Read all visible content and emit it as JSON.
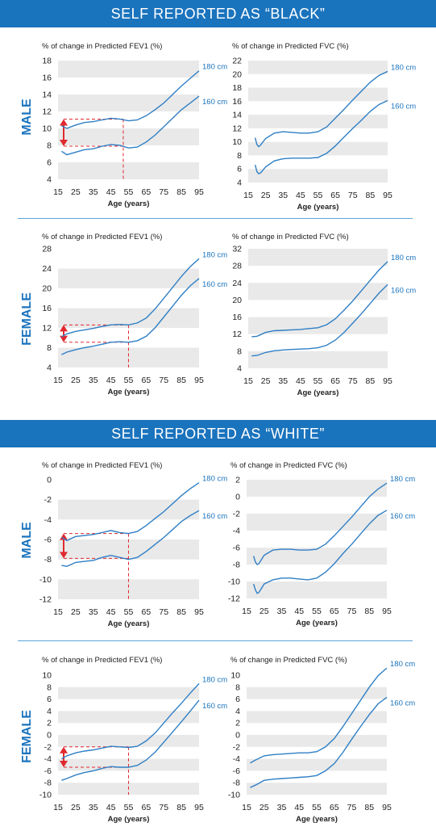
{
  "banners": [
    "SELF REPORTED AS “BLACK”",
    "SELF REPORTED AS “WHITE”"
  ],
  "sex_labels": [
    "MALE",
    "FEMALE",
    "MALE",
    "FEMALE"
  ],
  "colors": {
    "accent": "#1a73bd",
    "line": "#2f7fc5",
    "band": "#e9e9e9",
    "marker": "#e0292f"
  },
  "chart_data": [
    {
      "type": "line",
      "title": "% of change in Predicted FEV1 (%)",
      "xlabel": "Age (years)",
      "ylabel": "",
      "xlim": [
        15,
        95
      ],
      "ylim": [
        4,
        18
      ],
      "xticks": [
        15,
        25,
        35,
        45,
        55,
        65,
        75,
        85,
        95
      ],
      "yticks": [
        4,
        6,
        8,
        10,
        12,
        14,
        16,
        18
      ],
      "series": [
        {
          "name": "180 cm",
          "x": [
            17,
            20,
            25,
            30,
            35,
            40,
            45,
            50,
            55,
            60,
            65,
            70,
            75,
            80,
            85,
            90,
            95
          ],
          "y": [
            10.3,
            10.0,
            10.4,
            10.7,
            10.8,
            11.0,
            11.2,
            11.1,
            10.9,
            11.0,
            11.5,
            12.2,
            13.0,
            14.0,
            15.0,
            15.9,
            16.8
          ]
        },
        {
          "name": "160 cm",
          "x": [
            17,
            20,
            25,
            30,
            35,
            40,
            45,
            50,
            55,
            60,
            65,
            70,
            75,
            80,
            85,
            90,
            95
          ],
          "y": [
            7.3,
            6.9,
            7.2,
            7.5,
            7.6,
            7.9,
            8.1,
            8.0,
            7.7,
            7.8,
            8.4,
            9.2,
            10.2,
            11.2,
            12.2,
            13.0,
            13.8
          ]
        }
      ],
      "marker": {
        "x": 52,
        "y_high": 11.1,
        "y_low": 7.9
      }
    },
    {
      "type": "line",
      "title": "% of change in Predicted FVC (%)",
      "xlabel": "Age (years)",
      "ylabel": "",
      "xlim": [
        15,
        95
      ],
      "ylim": [
        4,
        22
      ],
      "xticks": [
        15,
        25,
        35,
        45,
        55,
        65,
        75,
        85,
        95
      ],
      "yticks": [
        4,
        6,
        8,
        10,
        12,
        14,
        16,
        18,
        20,
        22
      ],
      "series": [
        {
          "name": "180 cm",
          "x": [
            19,
            20,
            21,
            22,
            25,
            30,
            35,
            40,
            45,
            50,
            55,
            60,
            65,
            70,
            75,
            80,
            85,
            90,
            95
          ],
          "y": [
            10.6,
            9.6,
            9.3,
            9.5,
            10.5,
            11.3,
            11.5,
            11.4,
            11.3,
            11.3,
            11.5,
            12.2,
            13.5,
            14.8,
            16.2,
            17.5,
            18.8,
            19.8,
            20.4
          ]
        },
        {
          "name": "160 cm",
          "x": [
            19,
            20,
            21,
            22,
            25,
            30,
            35,
            40,
            45,
            50,
            55,
            60,
            65,
            70,
            75,
            80,
            85,
            90,
            95
          ],
          "y": [
            6.6,
            5.6,
            5.3,
            5.4,
            6.3,
            7.2,
            7.5,
            7.6,
            7.6,
            7.6,
            7.7,
            8.3,
            9.4,
            10.7,
            12.0,
            13.2,
            14.5,
            15.5,
            16.1
          ]
        }
      ]
    },
    {
      "type": "line",
      "title": "% of change in Predicted FEV1 (%)",
      "xlabel": "Age (years)",
      "ylabel": "",
      "xlim": [
        15,
        95
      ],
      "ylim": [
        4,
        28
      ],
      "xticks": [
        15,
        25,
        35,
        45,
        55,
        65,
        75,
        85,
        95
      ],
      "yticks": [
        4,
        8,
        12,
        16,
        20,
        24,
        28
      ],
      "series": [
        {
          "name": "180 cm",
          "x": [
            17,
            20,
            25,
            30,
            35,
            40,
            45,
            50,
            55,
            60,
            65,
            70,
            75,
            80,
            85,
            90,
            95
          ],
          "y": [
            10.2,
            10.8,
            11.3,
            11.6,
            11.9,
            12.3,
            12.6,
            12.7,
            12.6,
            13.0,
            14.0,
            15.8,
            18.0,
            20.2,
            22.4,
            24.4,
            26.0
          ]
        },
        {
          "name": "160 cm",
          "x": [
            17,
            20,
            25,
            30,
            35,
            40,
            45,
            50,
            55,
            60,
            65,
            70,
            75,
            80,
            85,
            90,
            95
          ],
          "y": [
            6.6,
            7.1,
            7.6,
            8.0,
            8.3,
            8.7,
            9.1,
            9.2,
            9.1,
            9.4,
            10.3,
            12.0,
            14.2,
            16.4,
            18.6,
            20.5,
            22.0
          ]
        }
      ],
      "marker": {
        "x": 55,
        "y_high": 12.6,
        "y_low": 9.1
      }
    },
    {
      "type": "line",
      "title": "% of change in Predicted FVC (%)",
      "xlabel": "Age (years)",
      "ylabel": "",
      "xlim": [
        15,
        95
      ],
      "ylim": [
        4,
        32
      ],
      "xticks": [
        15,
        25,
        35,
        45,
        55,
        65,
        75,
        85,
        95
      ],
      "yticks": [
        4,
        8,
        12,
        16,
        20,
        24,
        28,
        32
      ],
      "series": [
        {
          "name": "180 cm",
          "x": [
            17,
            20,
            25,
            30,
            35,
            40,
            45,
            50,
            55,
            60,
            65,
            70,
            75,
            80,
            85,
            90,
            95
          ],
          "y": [
            11.4,
            11.5,
            12.4,
            12.8,
            12.9,
            13.0,
            13.1,
            13.3,
            13.5,
            14.2,
            15.6,
            17.6,
            19.8,
            22.2,
            24.6,
            27.0,
            29.0
          ]
        },
        {
          "name": "160 cm",
          "x": [
            17,
            20,
            25,
            30,
            35,
            40,
            45,
            50,
            55,
            60,
            65,
            70,
            75,
            80,
            85,
            90,
            95
          ],
          "y": [
            6.9,
            7.0,
            7.7,
            8.1,
            8.3,
            8.4,
            8.5,
            8.6,
            8.8,
            9.4,
            10.6,
            12.4,
            14.6,
            16.8,
            19.2,
            21.6,
            23.6
          ]
        }
      ]
    },
    {
      "type": "line",
      "title": "% of change in Predicted FEV1 (%)",
      "xlabel": "Age (years)",
      "ylabel": "",
      "xlim": [
        15,
        95
      ],
      "ylim": [
        -12,
        0
      ],
      "xticks": [
        15,
        25,
        35,
        45,
        55,
        65,
        75,
        85,
        95
      ],
      "yticks": [
        -12,
        -10,
        -8,
        -6,
        -4,
        -2,
        0
      ],
      "series": [
        {
          "name": "180 cm",
          "x": [
            17,
            20,
            25,
            30,
            35,
            40,
            45,
            50,
            55,
            60,
            65,
            70,
            75,
            80,
            85,
            90,
            95
          ],
          "y": [
            -5.8,
            -6.1,
            -5.7,
            -5.6,
            -5.5,
            -5.3,
            -5.1,
            -5.3,
            -5.4,
            -5.2,
            -4.6,
            -3.9,
            -3.2,
            -2.4,
            -1.6,
            -0.9,
            -0.3
          ]
        },
        {
          "name": "160 cm",
          "x": [
            17,
            20,
            25,
            30,
            35,
            40,
            45,
            50,
            55,
            60,
            65,
            70,
            75,
            80,
            85,
            90,
            95
          ],
          "y": [
            -8.6,
            -8.7,
            -8.3,
            -8.2,
            -8.1,
            -7.8,
            -7.6,
            -7.8,
            -8.0,
            -7.8,
            -7.2,
            -6.5,
            -5.8,
            -5.0,
            -4.2,
            -3.6,
            -3.1
          ]
        }
      ],
      "marker": {
        "x": 55,
        "y_high": -5.4,
        "y_low": -7.9
      }
    },
    {
      "type": "line",
      "title": "% of change in Predicted FVC (%)",
      "xlabel": "Age (years)",
      "ylabel": "",
      "xlim": [
        15,
        95
      ],
      "ylim": [
        -12,
        2
      ],
      "xticks": [
        15,
        25,
        35,
        45,
        55,
        65,
        75,
        85,
        95
      ],
      "yticks": [
        -12,
        -10,
        -8,
        -6,
        -4,
        -2,
        0,
        2
      ],
      "series": [
        {
          "name": "180 cm",
          "x": [
            19,
            20,
            21,
            22,
            25,
            30,
            35,
            40,
            45,
            50,
            55,
            60,
            65,
            70,
            75,
            80,
            85,
            90,
            95
          ],
          "y": [
            -7.0,
            -7.7,
            -8.0,
            -7.9,
            -6.9,
            -6.3,
            -6.2,
            -6.2,
            -6.3,
            -6.3,
            -6.2,
            -5.6,
            -4.6,
            -3.5,
            -2.4,
            -1.2,
            0.0,
            0.9,
            1.6
          ]
        },
        {
          "name": "160 cm",
          "x": [
            19,
            20,
            21,
            22,
            25,
            30,
            35,
            40,
            45,
            50,
            55,
            60,
            65,
            70,
            75,
            80,
            85,
            90,
            95
          ],
          "y": [
            -10.3,
            -11.0,
            -11.4,
            -11.3,
            -10.3,
            -9.8,
            -9.6,
            -9.6,
            -9.7,
            -9.8,
            -9.6,
            -8.9,
            -7.9,
            -6.7,
            -5.6,
            -4.4,
            -3.2,
            -2.2,
            -1.6
          ]
        }
      ]
    },
    {
      "type": "line",
      "title": "% of change in Predicted FEV1 (%)",
      "xlabel": "Age (years)",
      "ylabel": "",
      "xlim": [
        15,
        95
      ],
      "ylim": [
        -10,
        10
      ],
      "xticks": [
        15,
        25,
        35,
        45,
        55,
        65,
        75,
        85,
        95
      ],
      "yticks": [
        -10,
        -8,
        -6,
        -4,
        -2,
        0,
        2,
        4,
        6,
        8,
        10
      ],
      "series": [
        {
          "name": "180 cm",
          "x": [
            17,
            20,
            25,
            30,
            35,
            40,
            45,
            50,
            55,
            60,
            65,
            70,
            75,
            80,
            85,
            90,
            95
          ],
          "y": [
            -4.0,
            -3.5,
            -3.0,
            -2.7,
            -2.5,
            -2.2,
            -1.9,
            -2.0,
            -2.1,
            -1.9,
            -1.0,
            0.3,
            2.0,
            3.7,
            5.3,
            7.0,
            8.6
          ]
        },
        {
          "name": "160 cm",
          "x": [
            17,
            20,
            25,
            30,
            35,
            40,
            45,
            50,
            55,
            60,
            65,
            70,
            75,
            80,
            85,
            90,
            95
          ],
          "y": [
            -7.6,
            -7.3,
            -6.7,
            -6.3,
            -6.0,
            -5.6,
            -5.3,
            -5.4,
            -5.4,
            -5.1,
            -4.2,
            -2.9,
            -1.2,
            0.5,
            2.2,
            4.0,
            5.8
          ]
        }
      ],
      "marker": {
        "x": 55,
        "y_high": -2.0,
        "y_low": -5.4
      }
    },
    {
      "type": "line",
      "title": "% of change in Predicted FVC (%)",
      "xlabel": "Age (years)",
      "ylabel": "",
      "xlim": [
        15,
        95
      ],
      "ylim": [
        -10,
        10
      ],
      "xticks": [
        15,
        25,
        35,
        45,
        55,
        65,
        75,
        85,
        95
      ],
      "yticks": [
        -10,
        -8,
        -6,
        -4,
        -2,
        0,
        2,
        4,
        6,
        8,
        10
      ],
      "series": [
        {
          "name": "180 cm",
          "x": [
            17,
            20,
            25,
            30,
            35,
            40,
            45,
            50,
            55,
            60,
            65,
            70,
            75,
            80,
            85,
            90,
            95
          ],
          "y": [
            -4.7,
            -4.2,
            -3.5,
            -3.3,
            -3.2,
            -3.1,
            -3.0,
            -3.0,
            -2.8,
            -2.0,
            -0.6,
            1.4,
            3.6,
            5.8,
            8.0,
            9.9,
            11.2
          ]
        },
        {
          "name": "160 cm",
          "x": [
            17,
            20,
            25,
            30,
            35,
            40,
            45,
            50,
            55,
            60,
            65,
            70,
            75,
            80,
            85,
            90,
            95
          ],
          "y": [
            -8.8,
            -8.4,
            -7.6,
            -7.4,
            -7.3,
            -7.2,
            -7.1,
            -7.0,
            -6.8,
            -6.0,
            -4.8,
            -2.9,
            -0.7,
            1.4,
            3.4,
            5.2,
            6.3
          ]
        }
      ]
    }
  ]
}
